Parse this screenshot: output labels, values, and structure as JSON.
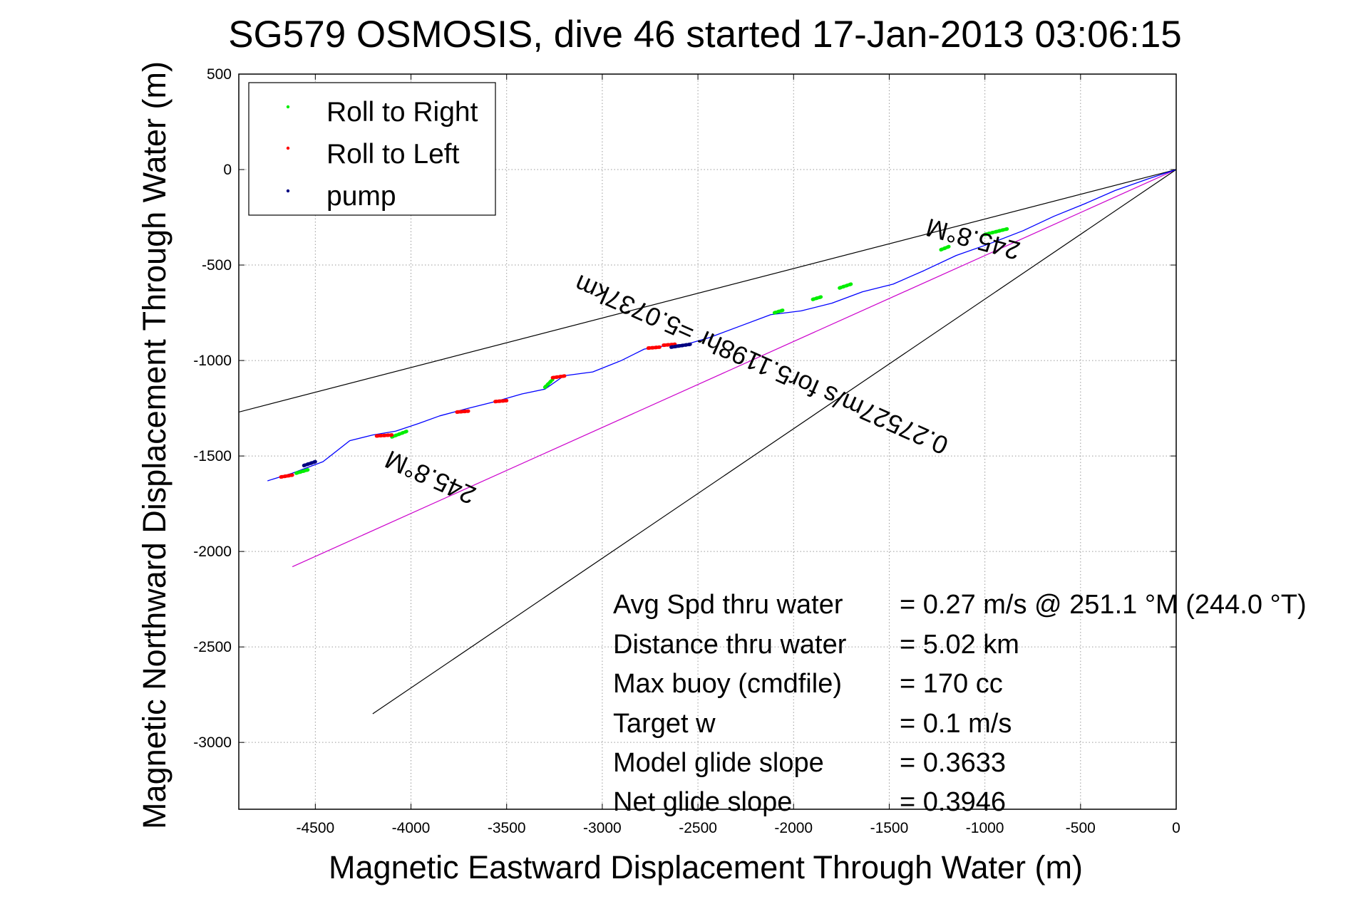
{
  "chart_data": {
    "type": "line",
    "title": "SG579 OSMOSIS, dive 46 started 17-Jan-2013 03:06:15",
    "xlabel": "Magnetic Eastward Displacement Through Water (m)",
    "ylabel": "Magnetic Northward Displacement Through Water (m)",
    "xlim": [
      -4900,
      0
    ],
    "ylim": [
      -3350,
      500
    ],
    "xticks": [
      -4500,
      -4000,
      -3500,
      -3000,
      -2500,
      -2000,
      -1500,
      -1000,
      -500,
      0
    ],
    "yticks": [
      500,
      0,
      -500,
      -1000,
      -1500,
      -2000,
      -2500,
      -3000
    ],
    "grid": true,
    "legend_position": "top-left",
    "legend": [
      "Roll to Right",
      "Roll to Left",
      "pump"
    ],
    "colors": {
      "track": "#0000ff",
      "roll_right": "#00ee00",
      "roll_left": "#ff0000",
      "pump": "#000080",
      "heading_line": "#cc00cc",
      "cone": "#000000"
    },
    "track": {
      "x": [
        0,
        -150,
        -320,
        -480,
        -640,
        -800,
        -980,
        -1150,
        -1320,
        -1480,
        -1640,
        -1800,
        -1960,
        -2120,
        -2280,
        -2440,
        -2560,
        -2650,
        -2780,
        -2900,
        -3050,
        -3200,
        -3300,
        -3420,
        -3560,
        -3700,
        -3850,
        -3960,
        -4080,
        -4200,
        -4320,
        -4460,
        -4620,
        -4750
      ],
      "y": [
        0,
        -50,
        -110,
        -180,
        -245,
        -320,
        -390,
        -450,
        -530,
        -600,
        -640,
        -700,
        -740,
        -760,
        -820,
        -880,
        -915,
        -920,
        -940,
        -1000,
        -1060,
        -1080,
        -1150,
        -1175,
        -1215,
        -1250,
        -1290,
        -1330,
        -1370,
        -1390,
        -1420,
        -1530,
        -1590,
        -1630
      ]
    },
    "roll_right_segments": [
      [
        [
          -1000,
          -340
        ],
        [
          -880,
          -310
        ]
      ],
      [
        [
          -1230,
          -420
        ],
        [
          -1180,
          -400
        ]
      ],
      [
        [
          -1700,
          -600
        ],
        [
          -1760,
          -620
        ]
      ],
      [
        [
          -1900,
          -680
        ],
        [
          -1850,
          -665
        ]
      ],
      [
        [
          -2100,
          -750
        ],
        [
          -2050,
          -735
        ]
      ],
      [
        [
          -3300,
          -1140
        ],
        [
          -3260,
          -1100
        ]
      ],
      [
        [
          -4100,
          -1400
        ],
        [
          -4020,
          -1370
        ]
      ],
      [
        [
          -4600,
          -1590
        ],
        [
          -4530,
          -1570
        ]
      ]
    ],
    "roll_left_segments": [
      [
        [
          -2760,
          -935
        ],
        [
          -2700,
          -930
        ]
      ],
      [
        [
          -2680,
          -920
        ],
        [
          -2620,
          -915
        ]
      ],
      [
        [
          -3260,
          -1090
        ],
        [
          -3190,
          -1080
        ]
      ],
      [
        [
          -3560,
          -1215
        ],
        [
          -3500,
          -1210
        ]
      ],
      [
        [
          -3760,
          -1270
        ],
        [
          -3700,
          -1265
        ]
      ],
      [
        [
          -4180,
          -1395
        ],
        [
          -4100,
          -1390
        ]
      ],
      [
        [
          -4680,
          -1610
        ],
        [
          -4620,
          -1600
        ]
      ]
    ],
    "pump_segments": [
      [
        [
          -2640,
          -930
        ],
        [
          -2540,
          -915
        ]
      ],
      [
        [
          -4560,
          -1550
        ],
        [
          -4500,
          -1530
        ]
      ]
    ],
    "lines": [
      {
        "name": "cone-upper",
        "x": [
          0,
          -4900
        ],
        "y": [
          0,
          -1270
        ]
      },
      {
        "name": "heading",
        "x": [
          0,
          -4620
        ],
        "y": [
          0,
          -2080
        ]
      },
      {
        "name": "cone-lower",
        "x": [
          0,
          -4200
        ],
        "y": [
          0,
          -2850
        ]
      }
    ],
    "annotations": [
      {
        "text": "245.8°M",
        "x": -1050,
        "y": -320,
        "rotate": 195
      },
      {
        "text": "0.27527m/s for5.1198hr =5.0737km",
        "x": -2150,
        "y": -980,
        "rotate": 204
      },
      {
        "text": "245.8°M",
        "x": -3880,
        "y": -1570,
        "rotate": 204
      }
    ],
    "stats": [
      {
        "label": "Avg Spd thru water",
        "value": "=  0.27 m/s @ 251.1 °M (244.0 °T)"
      },
      {
        "label": "Distance thru water",
        "value": "=  5.02 km"
      },
      {
        "label": "Max buoy (cmdfile)",
        "value": "= 170 cc"
      },
      {
        "label": "Target w",
        "value": "= 0.1 m/s"
      },
      {
        "label": "Model glide slope",
        "value": "= 0.3633"
      },
      {
        "label": "Net glide slope",
        "value": "= 0.3946"
      }
    ]
  }
}
